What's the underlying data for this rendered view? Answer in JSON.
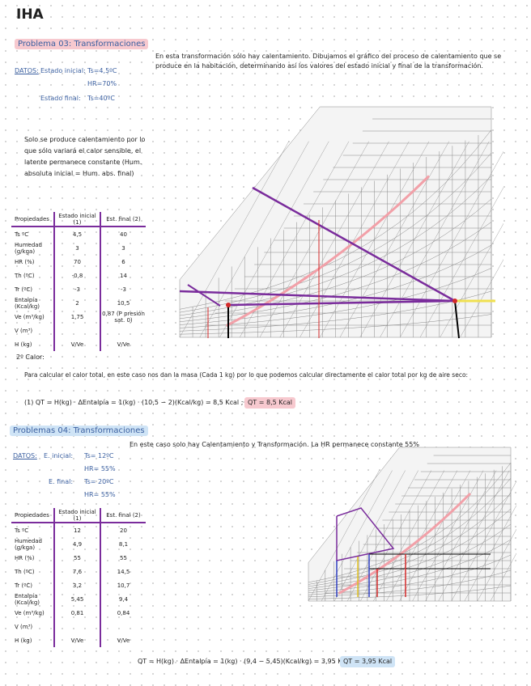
{
  "header": {
    "title": "IHA"
  },
  "problem_03": {
    "title": "Problema 03: Transformaciones",
    "intro": "En esta transformación sólo hay calentamiento. Dibujamos el gráfico del proceso de calentamiento que se produce en la habitación, determinando así los valores del estado inicial y final de la transformación.",
    "datos_label": "DATOS:",
    "initial_label": "Estado inicial:",
    "initial_ts": "Ts=4,5ºC",
    "initial_hr": "HR=70%",
    "final_label": "Estado final:",
    "final_ts": "Ts=40ºC",
    "note": "Solo se produce calentamiento por lo que sólo variará el calor sensible, el latente permanece constante (Hum. absoluta inicial = Hum. abs. final)",
    "table": {
      "header": [
        "Propiedades",
        "Estado inicial (1)",
        "Est. final (2)"
      ],
      "rows": [
        [
          "Ts ºC",
          "4,5",
          "40"
        ],
        [
          "Humedad (g/kga)",
          "3",
          "3"
        ],
        [
          "HR (%)",
          "70",
          "6"
        ],
        [
          "Th (ºC)",
          "-0,8",
          "14"
        ],
        [
          "Tr (ºC)",
          "-3",
          "-3"
        ],
        [
          "Entalpía (Kcal/kg)",
          "2",
          "10,5"
        ],
        [
          "Ve (m³/kg)",
          "1,75",
          "0,87 (P presión sat. 0)"
        ],
        [
          "V (m³)",
          "",
          ""
        ],
        [
          "H (kg)",
          "V/Ve",
          "V/Ve"
        ]
      ]
    },
    "calor_heading": "2º Calor:",
    "calor_text": "Para calcular el calor total, en este caso nos dan la masa (Cada 1 kg) por lo que podemos calcular directamente el calor total por kg de aire seco:",
    "formula": "(1) QT = H(kg) · ΔEntalpía = 1(kg) · (10,5 − 2)(Kcal/kg) = 8,5 Kcal ;",
    "result": "QT = 8,5 Kcal"
  },
  "problem_04": {
    "title": "Problemas 04: Transformaciones",
    "intro": "En este caso solo hay Calentamiento y Transformación. La HR permanece constante 55%",
    "datos_label": "DATOS:",
    "initial_label": "E. inicial:",
    "initial_ts": "Ts= 12ºC",
    "initial_hr": "HR= 55%",
    "final_label": "E. final:",
    "final_ts": "Ts= 20ºC",
    "final_hr": "HR= 55%",
    "table": {
      "header": [
        "Propiedades",
        "Estado inicial (1)",
        "Est. final (2)"
      ],
      "rows": [
        [
          "Ts ºC",
          "12",
          "20"
        ],
        [
          "Humedad (g/kga)",
          "4,9",
          "8,1"
        ],
        [
          "HR (%)",
          "55",
          "55"
        ],
        [
          "Th (ºC)",
          "7,6",
          "14,5"
        ],
        [
          "Tr (ºC)",
          "3,2",
          "10,7"
        ],
        [
          "Entalpía (Kcal/kg)",
          "5,45",
          "9,4"
        ],
        [
          "Ve (m³/kg)",
          "0,81",
          "0,84"
        ],
        [
          "V (m³)",
          "",
          ""
        ],
        [
          "H (kg)",
          "V/Ve",
          "V/Ve"
        ]
      ]
    },
    "formula": "QT = H(kg) · ΔEntalpía = 1(kg) · (9,4 − 5,45)(Kcal/kg) = 3,95 Kcal",
    "result": "QT = 3,95 Kcal"
  }
}
